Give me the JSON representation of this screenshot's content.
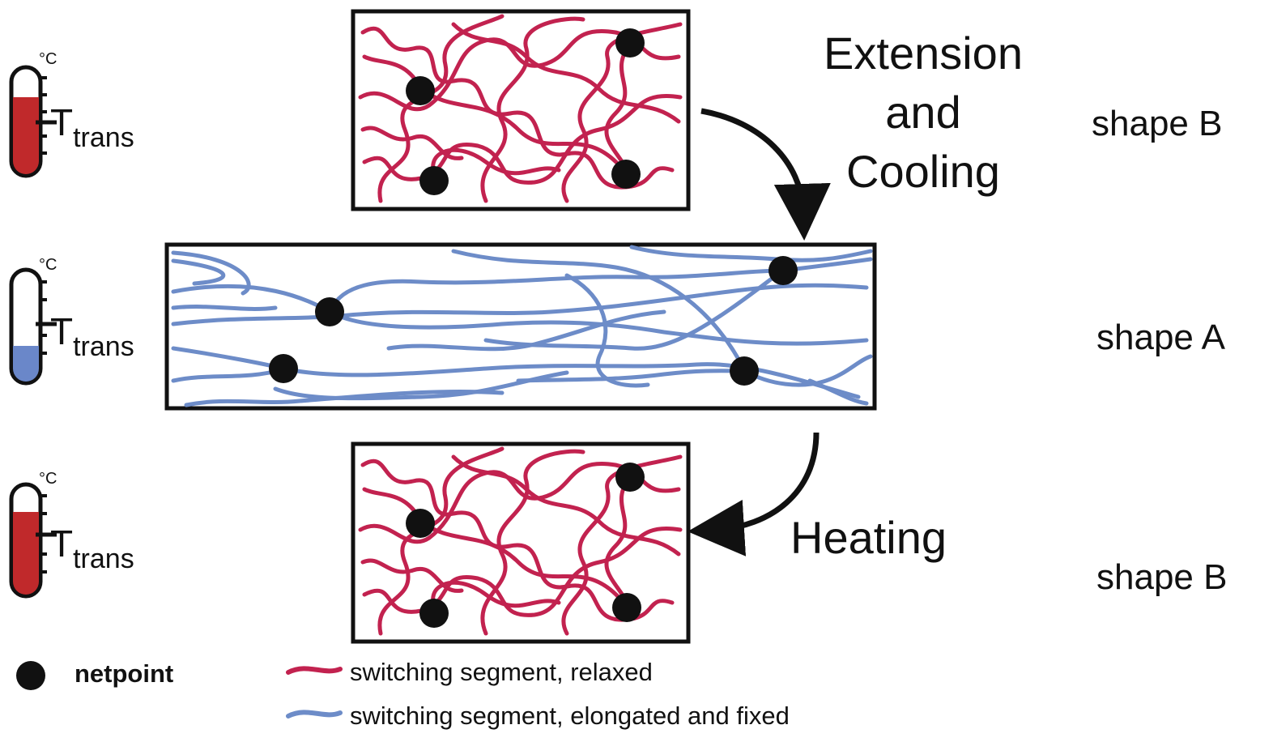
{
  "colors": {
    "relaxed": "#c2224f",
    "elongated": "#6d8cc8",
    "netpoint": "#111111",
    "hot_fill": "#c0292b",
    "cold_fill": "#6a87c9"
  },
  "steps": {
    "extension_line1": "Extension",
    "extension_line2": "and",
    "extension_line3": "Cooling",
    "heating": "Heating"
  },
  "shapes": {
    "top": "shape B",
    "middle": "shape A",
    "bottom": "shape B"
  },
  "thermometers": [
    {
      "unit": "°C",
      "label": "T",
      "sub": "trans",
      "state": "hot"
    },
    {
      "unit": "°C",
      "label": "T",
      "sub": "trans",
      "state": "cold"
    },
    {
      "unit": "°C",
      "label": "T",
      "sub": "trans",
      "state": "hot"
    }
  ],
  "legend": {
    "netpoint": "netpoint",
    "relaxed": "switching segment, relaxed",
    "elongated": "switching segment, elongated and fixed"
  }
}
